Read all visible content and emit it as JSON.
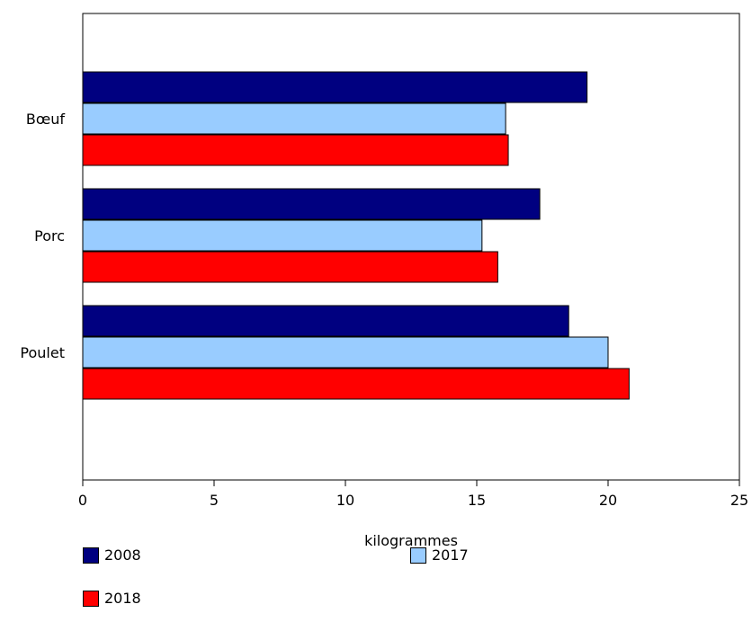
{
  "chart_data": {
    "type": "bar",
    "orientation": "horizontal",
    "categories": [
      "Bœuf",
      "Porc",
      "Poulet"
    ],
    "series": [
      {
        "name": "2008",
        "color": "#000080",
        "values": [
          19.2,
          17.4,
          18.5
        ]
      },
      {
        "name": "2017",
        "color": "#99ccff",
        "values": [
          16.1,
          15.2,
          20.0
        ]
      },
      {
        "name": "2018",
        "color": "#ff0000",
        "values": [
          16.2,
          15.8,
          20.8
        ]
      }
    ],
    "xlabel": "kilogrammes",
    "xlim": [
      0,
      25
    ],
    "xticks": [
      "0",
      "5",
      "10",
      "15",
      "20",
      "25"
    ],
    "grid": false,
    "legend_position": "bottom"
  }
}
